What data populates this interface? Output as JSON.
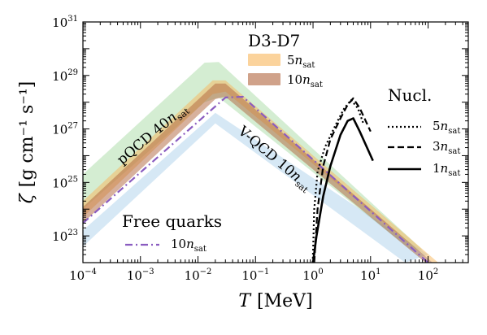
{
  "chart_data": {
    "type": "area",
    "xlabel_main": "T",
    "xlabel_unit": "[MeV]",
    "ylabel_symbol": "ζ",
    "ylabel_unit": "[g cm⁻¹ s⁻¹]",
    "xscale": "log",
    "yscale": "log",
    "xlim": [
      0.0001,
      500
    ],
    "ylim": [
      1e+22,
      1e+31
    ],
    "x_ticks": [
      {
        "value": 0.0001,
        "base": "10",
        "exp": "−4"
      },
      {
        "value": 0.001,
        "base": "10",
        "exp": "−3"
      },
      {
        "value": 0.01,
        "base": "10",
        "exp": "−2"
      },
      {
        "value": 0.1,
        "base": "10",
        "exp": "−1"
      },
      {
        "value": 1,
        "base": "10",
        "exp": "0"
      },
      {
        "value": 10,
        "base": "10",
        "exp": "1"
      },
      {
        "value": 100,
        "base": "10",
        "exp": "2"
      }
    ],
    "y_ticks": [
      {
        "value": 1e+23,
        "base": "10",
        "exp": "23"
      },
      {
        "value": 1e+25,
        "base": "10",
        "exp": "25"
      },
      {
        "value": 1e+27,
        "base": "10",
        "exp": "27"
      },
      {
        "value": 1e+29,
        "base": "10",
        "exp": "29"
      },
      {
        "value": 1e+31,
        "base": "10",
        "exp": "31"
      }
    ],
    "bands": [
      {
        "id": "pqcd",
        "color": "#8fcf8a",
        "opacity": 0.38,
        "upper": [
          [
            0.0001,
            2e+25
          ],
          [
            0.013,
            3e+29
          ],
          [
            0.023,
            3.2e+29
          ],
          [
            80,
            3e+22
          ]
        ],
        "lower": [
          [
            0.0001,
            1e+24
          ],
          [
            0.013,
            1e+28
          ],
          [
            0.023,
            1.5e+28
          ],
          [
            50,
            3e+22
          ]
        ]
      },
      {
        "id": "vqcd",
        "color": "#9ec8e8",
        "opacity": 0.42,
        "upper": [
          [
            0.0001,
            1.6e+23
          ],
          [
            0.02,
            4e+27
          ],
          [
            100,
            2e+22
          ]
        ],
        "lower": [
          [
            0.0001,
            4e+22
          ],
          [
            0.02,
            1.6e+27
          ],
          [
            40,
            1e+22
          ]
        ]
      },
      {
        "id": "d3d7-5",
        "color": "#f8b55a",
        "opacity": 0.5,
        "upper": [
          [
            0.0001,
            2e+24
          ],
          [
            0.018,
            6.5e+28
          ],
          [
            0.03,
            6.5e+28
          ],
          [
            150,
            1e+22
          ]
        ],
        "lower": [
          [
            0.0001,
            5e+23
          ],
          [
            0.018,
            2e+28
          ],
          [
            0.03,
            2.5e+28
          ],
          [
            120,
            1e+22
          ]
        ]
      },
      {
        "id": "d3d7-10",
        "color": "#b0643c",
        "opacity": 0.5,
        "upper": [
          [
            0.0001,
            1.2e+24
          ],
          [
            0.02,
            5e+28
          ],
          [
            0.03,
            5e+28
          ],
          [
            120,
            1e+22
          ]
        ],
        "lower": [
          [
            0.0001,
            3e+23
          ],
          [
            0.02,
            1.3e+28
          ],
          [
            0.03,
            1.6e+28
          ],
          [
            90,
            1e+22
          ]
        ]
      }
    ],
    "lines": [
      {
        "id": "free-quarks",
        "color": "#8a5cc0",
        "dash": "9 4 2 4",
        "width": 2.2,
        "points": [
          [
            0.0001,
            3e+23
          ],
          [
            0.03,
            1.5e+28
          ],
          [
            0.06,
            1.6e+28
          ],
          [
            100,
            1e+22
          ]
        ]
      },
      {
        "id": "nucl-5",
        "color": "#000000",
        "dash": "2 3",
        "width": 2.2,
        "points": [
          [
            0.99,
            1e+22
          ],
          [
            1.05,
            1e+24
          ],
          [
            1.2,
            2.5e+25
          ],
          [
            1.6,
            2e+26
          ],
          [
            2.5,
            1.5e+27
          ],
          [
            3.5,
            6e+27
          ],
          [
            4.6,
            1.2e+28
          ],
          [
            6.0,
            6e+27
          ],
          [
            7.5,
            1.6e+27
          ]
        ]
      },
      {
        "id": "nucl-3",
        "color": "#000000",
        "dash": "8 4",
        "width": 2.2,
        "points": [
          [
            1.05,
            1e+22
          ],
          [
            1.2,
            1e+24
          ],
          [
            1.5,
            4e+25
          ],
          [
            2.0,
            4e+26
          ],
          [
            3.0,
            2.5e+27
          ],
          [
            4.0,
            8e+27
          ],
          [
            5.0,
            1.4e+28
          ],
          [
            6.5,
            6e+27
          ],
          [
            10.0,
            8e+26
          ]
        ]
      },
      {
        "id": "nucl-1",
        "color": "#000000",
        "dash": "",
        "width": 2.6,
        "points": [
          [
            1.0,
            1e+22
          ],
          [
            1.15,
            1e+23
          ],
          [
            1.5,
            3e+24
          ],
          [
            2.0,
            4e+25
          ],
          [
            3.0,
            6e+26
          ],
          [
            4.0,
            2e+27
          ],
          [
            5.0,
            2.5e+27
          ],
          [
            6.5,
            8e+26
          ],
          [
            11.0,
            6.5e+25
          ]
        ]
      }
    ],
    "annotations": [
      {
        "id": "pqcd-label",
        "text_main": "pQCD 40",
        "text_n": "n",
        "text_sub": "sat"
      },
      {
        "id": "vqcd-label",
        "text_main": "V-QCD 10",
        "text_n": "n",
        "text_sub": "sat"
      }
    ],
    "legend_d3d7": {
      "title": "D3-D7",
      "entries": [
        {
          "coef": "5",
          "n": "n",
          "sub": "sat",
          "color": "#f8b55a"
        },
        {
          "coef": "10",
          "n": "n",
          "sub": "sat",
          "color": "#b0643c"
        }
      ]
    },
    "legend_nucl": {
      "title": "Nucl.",
      "entries": [
        {
          "coef": "5",
          "n": "n",
          "sub": "sat",
          "dash": "2 3"
        },
        {
          "coef": "3",
          "n": "n",
          "sub": "sat",
          "dash": "8 4"
        },
        {
          "coef": "1",
          "n": "n",
          "sub": "sat",
          "dash": ""
        }
      ]
    },
    "legend_free": {
      "title": "Free quarks",
      "entries": [
        {
          "coef": "10",
          "n": "n",
          "sub": "sat",
          "color": "#8a5cc0",
          "dash": "9 4 2 4"
        }
      ]
    }
  }
}
